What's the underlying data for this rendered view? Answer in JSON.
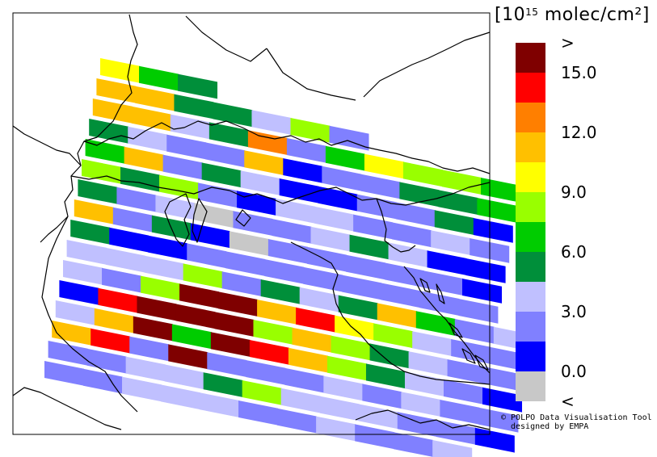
{
  "legend": {
    "unit_prefix": "[10",
    "unit_exp": "15",
    "unit_suffix": " molec/cm²]",
    "colors": [
      "#7f0000",
      "#ff0000",
      "#ff7f00",
      "#ffc000",
      "#ffff00",
      "#99ff00",
      "#00cc00",
      "#008f3a",
      "#c0c0ff",
      "#8080ff",
      "#0000ff",
      "#c8c8c8"
    ],
    "labels": [
      {
        "text": ">",
        "index": 0
      },
      {
        "text": "15.0",
        "index": 1
      },
      {
        "text": "12.0",
        "index": 3
      },
      {
        "text": "9.0",
        "index": 5
      },
      {
        "text": "6.0",
        "index": 7
      },
      {
        "text": "3.0",
        "index": 9
      },
      {
        "text": "0.0",
        "index": 11
      },
      {
        "text": "<",
        "index": 12
      }
    ]
  },
  "credit": {
    "line1": "© POLPO Data Visualisation Tool",
    "line2": "designed by EMPA"
  },
  "swath": {
    "rows": [
      "4 6 7 X X X X X X X X X X X X X X X X X X X",
      "3 3 7 7 8 5 9 X X X X X X X X X X X X X X X",
      "3 3 8 7 2 9 6 4 5 5 6 8 X X X X X X X X X X",
      "7 8 9 9 3 10 9 9 7 7 6 8 9 9 X X X X X X X X",
      "6 3 9 7 8 10 10 9 9 7 10 11 9 8 7 X X X X X X X",
      "5 7 5 9 10 8 8 9 9 8 9 9 9 8 3 6 X X X X X X",
      "7 9 8 11 9 9 8 7 8 10 10 8 7 8 9 6 X X X X X X",
      "3 9 7 10 11 9 9 9 9 9 10 11 11 9 9 9 9 X X X X X",
      "7 10 10 9 9 9 9 9 9 9 9 10 9 9 9 9 X X X X X X",
      "8 8 8 5 9 7 8 7 3 6 9 8 8 8 8 9 X X X X X X",
      "8 9 5 0 0 3 1 4 5 8 9 9 8 9 9 8 X X X X X X",
      "10 1 0 0 0 5 3 5 7 8 9 9 8 10 8 9 X X X X X X",
      "8 3 0 6 0 1 3 5 7 8 9 10 8 9 10 8 X X X X X X",
      "3 1 9 0 9 9 9 8 9 8 9 9 10 10 10 9 X X X X X X",
      "9 9 8 8 7 5 8 8 8 9 9 10 11 10 X X X X X X X X",
      "9 9 8 8 8 9 9 8 9 9 8 X X X X X X X X X X X"
    ]
  }
}
